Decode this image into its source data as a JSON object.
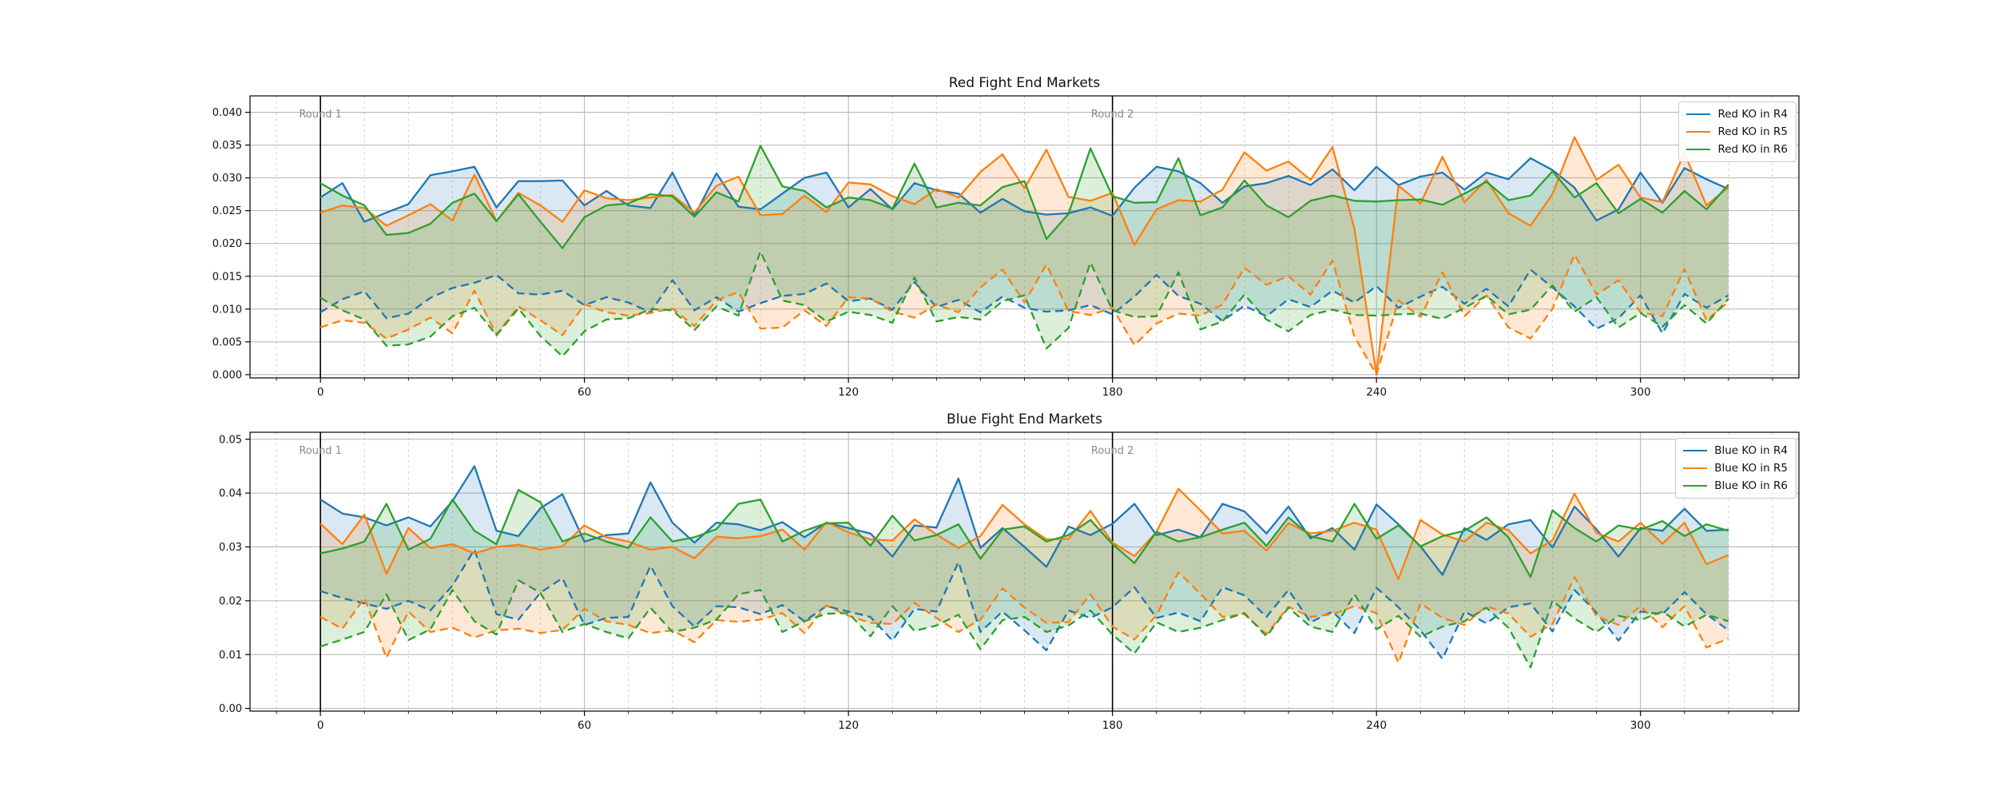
{
  "colors": {
    "blue": "#1f77b4",
    "orange": "#ff7f0e",
    "green": "#2ca02c",
    "grid_major": "#b3b3b3",
    "grid_minor": "#d2d2d2",
    "round_line": "#000000",
    "annotation_text": "#8a8a8a",
    "spine": "#000000",
    "tick_text": "#111111"
  },
  "chart_data": [
    {
      "type": "line",
      "title": "Red Fight End Markets",
      "legend_position": "upper right",
      "grid": true,
      "x_start": 0,
      "x_step": 5,
      "xlim": [
        -16,
        336
      ],
      "ylim": [
        -0.0005,
        0.0425
      ],
      "xticks": [
        0,
        60,
        120,
        180,
        240,
        300
      ],
      "x_minor_step": 10,
      "ytick_values": [
        0.0,
        0.005,
        0.01,
        0.015,
        0.02,
        0.025,
        0.03,
        0.035,
        0.04
      ],
      "ytick_labels": [
        "0.000",
        "0.005",
        "0.010",
        "0.015",
        "0.020",
        "0.025",
        "0.030",
        "0.035",
        "0.040"
      ],
      "vlines": [
        {
          "x": 0,
          "label": "Round 1"
        },
        {
          "x": 180,
          "label": "Round 2"
        }
      ],
      "series": [
        {
          "label": "Red KO in R4",
          "color": "blue",
          "upper": [
            0.027,
            0.0292,
            0.0233,
            0.0247,
            0.026,
            0.0304,
            0.031,
            0.0317,
            0.0255,
            0.0295,
            0.0295,
            0.0296,
            0.0258,
            0.028,
            0.0258,
            0.0254,
            0.0308,
            0.0242,
            0.0307,
            0.0256,
            0.0252,
            0.0276,
            0.03,
            0.0308,
            0.0255,
            0.0283,
            0.0252,
            0.0292,
            0.0281,
            0.0276,
            0.0247,
            0.0268,
            0.0249,
            0.0244,
            0.0246,
            0.0255,
            0.0242,
            0.0285,
            0.0317,
            0.031,
            0.0292,
            0.0262,
            0.0287,
            0.0292,
            0.0303,
            0.0289,
            0.0313,
            0.0281,
            0.0317,
            0.0289,
            0.0302,
            0.0308,
            0.0282,
            0.0308,
            0.0298,
            0.033,
            0.0312,
            0.0285,
            0.0235,
            0.0252,
            0.0308,
            0.0262,
            0.0315,
            0.0298,
            0.0283
          ],
          "lower": [
            0.0095,
            0.0115,
            0.0127,
            0.0086,
            0.0093,
            0.0117,
            0.0132,
            0.014,
            0.0152,
            0.0124,
            0.0122,
            0.0128,
            0.0106,
            0.0118,
            0.011,
            0.0095,
            0.0144,
            0.0098,
            0.0118,
            0.0096,
            0.0109,
            0.012,
            0.0123,
            0.0139,
            0.0112,
            0.0116,
            0.0099,
            0.0141,
            0.0103,
            0.0114,
            0.0095,
            0.0119,
            0.0102,
            0.0096,
            0.0098,
            0.0106,
            0.0092,
            0.0119,
            0.0152,
            0.012,
            0.0108,
            0.0082,
            0.0105,
            0.0089,
            0.0115,
            0.0103,
            0.0128,
            0.011,
            0.0135,
            0.0102,
            0.0119,
            0.0134,
            0.0108,
            0.0131,
            0.0104,
            0.016,
            0.0133,
            0.0104,
            0.007,
            0.0086,
            0.0121,
            0.0063,
            0.0123,
            0.0102,
            0.0121
          ]
        },
        {
          "label": "Red KO in R5",
          "color": "orange",
          "upper": [
            0.0247,
            0.0258,
            0.0254,
            0.0227,
            0.0243,
            0.026,
            0.0235,
            0.0305,
            0.0234,
            0.0277,
            0.0258,
            0.0233,
            0.0281,
            0.0269,
            0.0266,
            0.027,
            0.0274,
            0.0247,
            0.0288,
            0.0302,
            0.0243,
            0.0245,
            0.0273,
            0.0248,
            0.0293,
            0.029,
            0.0272,
            0.026,
            0.0283,
            0.027,
            0.0309,
            0.0336,
            0.0284,
            0.0343,
            0.0271,
            0.0265,
            0.0277,
            0.0198,
            0.0252,
            0.0266,
            0.0264,
            0.0282,
            0.0339,
            0.0311,
            0.0325,
            0.0297,
            0.0347,
            0.0222,
            0.0,
            0.0288,
            0.0261,
            0.0332,
            0.0263,
            0.0297,
            0.0246,
            0.0227,
            0.0275,
            0.0362,
            0.0297,
            0.032,
            0.027,
            0.0263,
            0.0338,
            0.0258,
            0.0286
          ],
          "lower": [
            0.0072,
            0.0083,
            0.0079,
            0.0055,
            0.0069,
            0.0087,
            0.0063,
            0.0128,
            0.0061,
            0.0104,
            0.0083,
            0.006,
            0.0107,
            0.0095,
            0.009,
            0.0094,
            0.0101,
            0.0074,
            0.0113,
            0.0126,
            0.007,
            0.0072,
            0.0098,
            0.0074,
            0.0118,
            0.0116,
            0.0096,
            0.0087,
            0.0107,
            0.0095,
            0.0133,
            0.016,
            0.011,
            0.0168,
            0.0097,
            0.0091,
            0.0102,
            0.0045,
            0.0078,
            0.0093,
            0.009,
            0.0107,
            0.0163,
            0.0137,
            0.015,
            0.0122,
            0.0174,
            0.0058,
            0.0,
            0.0113,
            0.0088,
            0.0156,
            0.0089,
            0.0121,
            0.0072,
            0.0055,
            0.01,
            0.0183,
            0.0122,
            0.0144,
            0.0095,
            0.0089,
            0.0161,
            0.0083,
            0.0111
          ]
        },
        {
          "label": "Red KO in R6",
          "color": "green",
          "upper": [
            0.0292,
            0.0273,
            0.0258,
            0.0213,
            0.0216,
            0.023,
            0.0262,
            0.0276,
            0.0234,
            0.0275,
            0.0233,
            0.0193,
            0.024,
            0.0258,
            0.0261,
            0.0275,
            0.0272,
            0.0241,
            0.0278,
            0.0264,
            0.0349,
            0.0287,
            0.028,
            0.0255,
            0.027,
            0.0266,
            0.0253,
            0.0322,
            0.0255,
            0.0262,
            0.0258,
            0.0286,
            0.0295,
            0.0207,
            0.0245,
            0.0345,
            0.0272,
            0.0262,
            0.0263,
            0.033,
            0.0243,
            0.0255,
            0.0296,
            0.0258,
            0.024,
            0.0265,
            0.0273,
            0.0265,
            0.0264,
            0.0266,
            0.0267,
            0.0259,
            0.0276,
            0.0294,
            0.0266,
            0.0273,
            0.031,
            0.027,
            0.0292,
            0.0246,
            0.0268,
            0.0247,
            0.028,
            0.0252,
            0.029
          ],
          "lower": [
            0.0117,
            0.0098,
            0.0084,
            0.0044,
            0.0046,
            0.0058,
            0.0089,
            0.0102,
            0.006,
            0.0101,
            0.0059,
            0.0028,
            0.0066,
            0.0084,
            0.0086,
            0.01,
            0.0098,
            0.0068,
            0.0104,
            0.009,
            0.0188,
            0.0113,
            0.0106,
            0.0081,
            0.0096,
            0.0091,
            0.0079,
            0.0148,
            0.0081,
            0.0088,
            0.0084,
            0.0112,
            0.0121,
            0.004,
            0.0071,
            0.0171,
            0.0098,
            0.0088,
            0.0089,
            0.0156,
            0.0069,
            0.0081,
            0.0122,
            0.0084,
            0.0066,
            0.0091,
            0.0099,
            0.0091,
            0.009,
            0.0092,
            0.0093,
            0.0085,
            0.0102,
            0.012,
            0.0092,
            0.0099,
            0.0136,
            0.0096,
            0.0118,
            0.0072,
            0.0094,
            0.0073,
            0.0106,
            0.0078,
            0.0116
          ]
        }
      ]
    },
    {
      "type": "line",
      "title": "Blue Fight End Markets",
      "legend_position": "upper right",
      "grid": true,
      "x_start": 0,
      "x_step": 5,
      "xlim": [
        -16,
        336
      ],
      "ylim": [
        -0.0005,
        0.0513
      ],
      "xticks": [
        0,
        60,
        120,
        180,
        240,
        300
      ],
      "x_minor_step": 10,
      "ytick_values": [
        0.0,
        0.01,
        0.02,
        0.03,
        0.04,
        0.05
      ],
      "ytick_labels": [
        "0.00",
        "0.01",
        "0.02",
        "0.03",
        "0.04",
        "0.05"
      ],
      "vlines": [
        {
          "x": 0,
          "label": "Round 1"
        },
        {
          "x": 180,
          "label": "Round 2"
        }
      ],
      "series": [
        {
          "label": "Blue KO in R4",
          "color": "blue",
          "upper": [
            0.0388,
            0.0362,
            0.0355,
            0.034,
            0.0355,
            0.0338,
            0.0385,
            0.045,
            0.033,
            0.032,
            0.0372,
            0.0398,
            0.031,
            0.0322,
            0.0325,
            0.042,
            0.0345,
            0.0308,
            0.0345,
            0.0342,
            0.0331,
            0.0346,
            0.0318,
            0.0345,
            0.0335,
            0.0325,
            0.0282,
            0.034,
            0.0336,
            0.0427,
            0.0298,
            0.0335,
            0.03,
            0.0263,
            0.0338,
            0.0322,
            0.0343,
            0.038,
            0.0322,
            0.0332,
            0.0318,
            0.038,
            0.0366,
            0.0325,
            0.0375,
            0.0316,
            0.0335,
            0.0295,
            0.0379,
            0.0342,
            0.0301,
            0.0248,
            0.0335,
            0.0313,
            0.0342,
            0.035,
            0.0299,
            0.0375,
            0.0333,
            0.0282,
            0.0335,
            0.033,
            0.0371,
            0.033,
            0.0332
          ],
          "lower": [
            0.0218,
            0.0205,
            0.0195,
            0.0185,
            0.02,
            0.0182,
            0.0228,
            0.0295,
            0.0175,
            0.0165,
            0.0215,
            0.0242,
            0.0155,
            0.0168,
            0.017,
            0.0265,
            0.019,
            0.0152,
            0.019,
            0.0188,
            0.0175,
            0.0192,
            0.0162,
            0.019,
            0.018,
            0.017,
            0.0126,
            0.0185,
            0.018,
            0.0272,
            0.0142,
            0.018,
            0.0145,
            0.0108,
            0.0182,
            0.0168,
            0.0188,
            0.0225,
            0.0168,
            0.0178,
            0.0162,
            0.0225,
            0.021,
            0.017,
            0.022,
            0.016,
            0.018,
            0.014,
            0.0224,
            0.0188,
            0.0145,
            0.0092,
            0.018,
            0.0158,
            0.0188,
            0.0195,
            0.0143,
            0.022,
            0.0178,
            0.0126,
            0.018,
            0.0175,
            0.0216,
            0.0175,
            0.0145
          ]
        },
        {
          "label": "Blue KO in R5",
          "color": "orange",
          "upper": [
            0.0343,
            0.0305,
            0.036,
            0.025,
            0.0335,
            0.0298,
            0.0305,
            0.0288,
            0.03,
            0.0304,
            0.0295,
            0.0301,
            0.034,
            0.0318,
            0.031,
            0.0295,
            0.03,
            0.0279,
            0.0319,
            0.0316,
            0.032,
            0.0332,
            0.0295,
            0.0346,
            0.0327,
            0.0314,
            0.0312,
            0.0351,
            0.0323,
            0.0298,
            0.032,
            0.0378,
            0.0342,
            0.0314,
            0.0315,
            0.0367,
            0.0308,
            0.0283,
            0.0328,
            0.0408,
            0.0368,
            0.0325,
            0.033,
            0.0293,
            0.0344,
            0.0325,
            0.033,
            0.0345,
            0.0332,
            0.024,
            0.035,
            0.0323,
            0.031,
            0.0345,
            0.0331,
            0.0288,
            0.0312,
            0.0399,
            0.0326,
            0.031,
            0.0345,
            0.0306,
            0.0345,
            0.0268,
            0.0285
          ],
          "lower": [
            0.017,
            0.0148,
            0.0205,
            0.0094,
            0.018,
            0.0142,
            0.015,
            0.0132,
            0.0145,
            0.0148,
            0.014,
            0.0146,
            0.0185,
            0.0162,
            0.0155,
            0.014,
            0.0145,
            0.0123,
            0.0164,
            0.0161,
            0.0165,
            0.0177,
            0.014,
            0.0191,
            0.0172,
            0.0159,
            0.0157,
            0.0196,
            0.0168,
            0.0142,
            0.0165,
            0.0223,
            0.0187,
            0.0159,
            0.016,
            0.0212,
            0.0152,
            0.0128,
            0.0173,
            0.0253,
            0.0213,
            0.017,
            0.0175,
            0.0138,
            0.0189,
            0.017,
            0.0175,
            0.019,
            0.0177,
            0.0085,
            0.0195,
            0.0168,
            0.0155,
            0.019,
            0.0176,
            0.0133,
            0.0157,
            0.0244,
            0.0171,
            0.0155,
            0.019,
            0.0151,
            0.019,
            0.0113,
            0.013
          ]
        },
        {
          "label": "Blue KO in R6",
          "color": "green",
          "upper": [
            0.0288,
            0.0297,
            0.031,
            0.038,
            0.0295,
            0.0315,
            0.0388,
            0.033,
            0.0305,
            0.0406,
            0.0383,
            0.031,
            0.0325,
            0.031,
            0.0298,
            0.0355,
            0.031,
            0.0318,
            0.0333,
            0.038,
            0.0388,
            0.031,
            0.033,
            0.0344,
            0.0345,
            0.0302,
            0.0358,
            0.0312,
            0.0322,
            0.0342,
            0.0278,
            0.0332,
            0.0338,
            0.031,
            0.0322,
            0.035,
            0.0305,
            0.027,
            0.0328,
            0.031,
            0.0318,
            0.0332,
            0.0345,
            0.0302,
            0.0355,
            0.032,
            0.031,
            0.038,
            0.0315,
            0.034,
            0.0301,
            0.032,
            0.033,
            0.0355,
            0.0318,
            0.0244,
            0.0368,
            0.0335,
            0.031,
            0.034,
            0.0332,
            0.0348,
            0.032,
            0.0342,
            0.033
          ],
          "lower": [
            0.0115,
            0.0128,
            0.0142,
            0.0212,
            0.0127,
            0.0147,
            0.022,
            0.0162,
            0.0137,
            0.0238,
            0.0215,
            0.0142,
            0.0157,
            0.0142,
            0.013,
            0.0187,
            0.0142,
            0.015,
            0.0165,
            0.0212,
            0.022,
            0.0142,
            0.0162,
            0.0176,
            0.0177,
            0.0134,
            0.019,
            0.0144,
            0.0154,
            0.0174,
            0.011,
            0.0164,
            0.017,
            0.0142,
            0.0154,
            0.0182,
            0.0137,
            0.0102,
            0.016,
            0.0142,
            0.015,
            0.0164,
            0.0177,
            0.0134,
            0.0187,
            0.0152,
            0.0142,
            0.0212,
            0.0147,
            0.0172,
            0.0133,
            0.0152,
            0.0162,
            0.0187,
            0.015,
            0.0076,
            0.02,
            0.0167,
            0.0142,
            0.0172,
            0.0164,
            0.018,
            0.0152,
            0.0174,
            0.0162
          ]
        }
      ]
    }
  ]
}
